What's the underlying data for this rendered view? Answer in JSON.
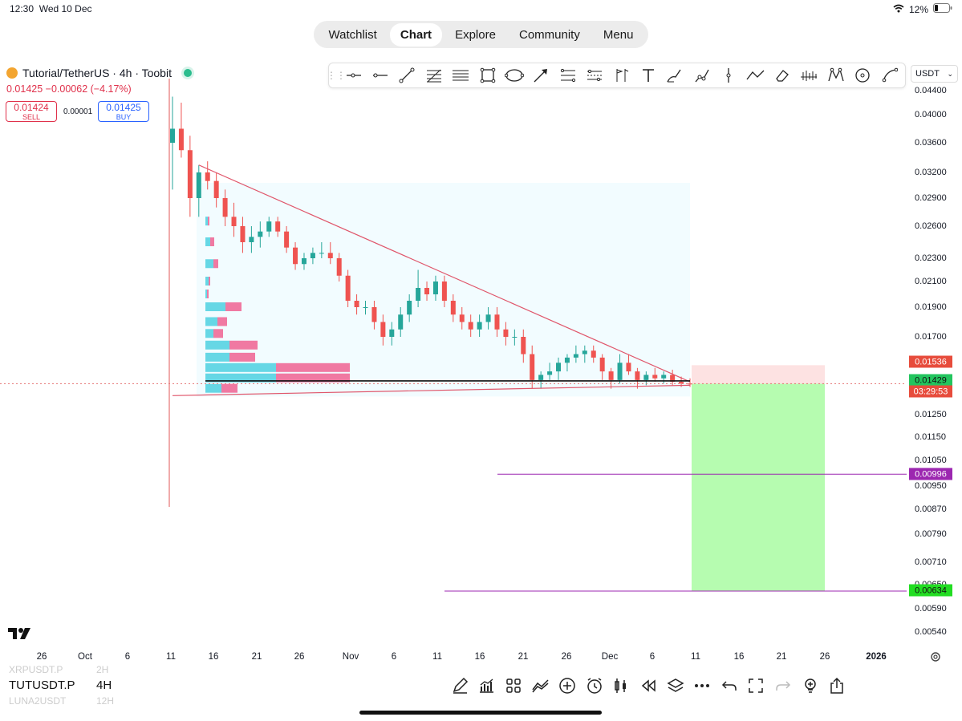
{
  "status": {
    "time": "12:30",
    "date": "Wed 10 Dec",
    "battery": "12%"
  },
  "nav_tabs": [
    {
      "label": "Watchlist",
      "active": false
    },
    {
      "label": "Chart",
      "active": true
    },
    {
      "label": "Explore",
      "active": false
    },
    {
      "label": "Community",
      "active": false
    },
    {
      "label": "Menu",
      "active": false
    }
  ],
  "symbol": {
    "title": "Tutorial/TetherUS · 4h · Toobit",
    "last": "0.01425",
    "change": "−0.00062 (−4.17%)"
  },
  "trade": {
    "sell_price": "0.01424",
    "sell_label": "SELL",
    "spread": "0.00001",
    "buy_price": "0.01425",
    "buy_label": "BUY"
  },
  "currency": "USDT",
  "price_axis": [
    "0.04400",
    "0.04000",
    "0.03600",
    "0.03200",
    "0.02900",
    "0.02600",
    "0.02300",
    "0.02100",
    "0.01900",
    "0.01700",
    "0.01250",
    "0.01150",
    "0.01050",
    "0.00950",
    "0.00870",
    "0.00790",
    "0.00710",
    "0.00650",
    "0.00590",
    "0.00540"
  ],
  "price_tags": {
    "target": "0.01536",
    "current": "0.01429",
    "countdown": "03:29:53",
    "level1": "0.00996",
    "level2": "0.00634"
  },
  "time_axis": [
    "26",
    "Oct",
    "6",
    "11",
    "16",
    "21",
    "26",
    "Nov",
    "6",
    "11",
    "16",
    "21",
    "26",
    "Dec",
    "6",
    "11",
    "16",
    "21",
    "26",
    "2026"
  ],
  "bottom": {
    "prev_symbol": "XRPUSDT.P",
    "prev_interval": "2H",
    "symbol": "TUTUSDT.P",
    "interval": "4H",
    "next_symbol": "LUNA2USDT",
    "next_interval": "12H"
  },
  "colors": {
    "up": "#26a69a",
    "down": "#ef5350",
    "target_tag": "#e74c3c",
    "current_tag": "#22c55e",
    "level_tag": "#9c27b0",
    "profit_zone": "#b6fcb0",
    "stop_zone": "#fde2e2"
  },
  "chart_data": {
    "type": "candlestick",
    "title": "",
    "xlabel": "",
    "ylabel": "",
    "x_range": [
      "Oct 10",
      "Dec 10"
    ],
    "ylim": [
      0.0054,
      0.044
    ],
    "candles": [
      [
        0.036,
        0.043,
        0.03,
        0.038
      ],
      [
        0.038,
        0.042,
        0.034,
        0.035
      ],
      [
        0.035,
        0.037,
        0.027,
        0.029
      ],
      [
        0.029,
        0.033,
        0.027,
        0.032
      ],
      [
        0.032,
        0.0335,
        0.03,
        0.031
      ],
      [
        0.031,
        0.032,
        0.028,
        0.029
      ],
      [
        0.029,
        0.03,
        0.026,
        0.027
      ],
      [
        0.027,
        0.0285,
        0.025,
        0.026
      ],
      [
        0.026,
        0.027,
        0.0235,
        0.0245
      ],
      [
        0.0245,
        0.026,
        0.0235,
        0.025
      ],
      [
        0.025,
        0.0265,
        0.024,
        0.0255
      ],
      [
        0.0255,
        0.027,
        0.025,
        0.0265
      ],
      [
        0.0265,
        0.027,
        0.025,
        0.0255
      ],
      [
        0.0255,
        0.026,
        0.0235,
        0.024
      ],
      [
        0.024,
        0.0245,
        0.022,
        0.0225
      ],
      [
        0.0225,
        0.0235,
        0.022,
        0.023
      ],
      [
        0.023,
        0.024,
        0.0225,
        0.0235
      ],
      [
        0.0235,
        0.0245,
        0.023,
        0.0235
      ],
      [
        0.0235,
        0.0245,
        0.0225,
        0.023
      ],
      [
        0.023,
        0.0235,
        0.021,
        0.0215
      ],
      [
        0.0215,
        0.022,
        0.019,
        0.0195
      ],
      [
        0.0195,
        0.02,
        0.0185,
        0.019
      ],
      [
        0.019,
        0.0195,
        0.0185,
        0.019
      ],
      [
        0.019,
        0.0195,
        0.0175,
        0.018
      ],
      [
        0.018,
        0.0185,
        0.0165,
        0.017
      ],
      [
        0.017,
        0.018,
        0.0165,
        0.0175
      ],
      [
        0.0175,
        0.019,
        0.017,
        0.0185
      ],
      [
        0.0185,
        0.02,
        0.018,
        0.0195
      ],
      [
        0.0195,
        0.022,
        0.019,
        0.0205
      ],
      [
        0.0205,
        0.021,
        0.0195,
        0.02
      ],
      [
        0.02,
        0.0215,
        0.0195,
        0.021
      ],
      [
        0.021,
        0.0215,
        0.019,
        0.0195
      ],
      [
        0.0195,
        0.02,
        0.018,
        0.0185
      ],
      [
        0.0185,
        0.019,
        0.0175,
        0.018
      ],
      [
        0.018,
        0.0185,
        0.017,
        0.0175
      ],
      [
        0.0175,
        0.0185,
        0.017,
        0.018
      ],
      [
        0.018,
        0.019,
        0.0175,
        0.0185
      ],
      [
        0.0185,
        0.019,
        0.017,
        0.0175
      ],
      [
        0.0175,
        0.018,
        0.0165,
        0.017
      ],
      [
        0.017,
        0.0175,
        0.0165,
        0.017
      ],
      [
        0.017,
        0.0175,
        0.0155,
        0.016
      ],
      [
        0.016,
        0.0165,
        0.014,
        0.0145
      ],
      [
        0.0145,
        0.015,
        0.014,
        0.0148
      ],
      [
        0.0148,
        0.0155,
        0.0145,
        0.015
      ],
      [
        0.015,
        0.0158,
        0.0145,
        0.0155
      ],
      [
        0.0155,
        0.016,
        0.015,
        0.0158
      ],
      [
        0.0158,
        0.0165,
        0.0155,
        0.016
      ],
      [
        0.016,
        0.0165,
        0.0155,
        0.0162
      ],
      [
        0.0162,
        0.0165,
        0.0155,
        0.0158
      ],
      [
        0.0158,
        0.016,
        0.0145,
        0.015
      ],
      [
        0.015,
        0.0152,
        0.014,
        0.0145
      ],
      [
        0.0145,
        0.016,
        0.0143,
        0.0155
      ],
      [
        0.0155,
        0.016,
        0.0148,
        0.015
      ],
      [
        0.015,
        0.0152,
        0.014,
        0.0145
      ],
      [
        0.0145,
        0.015,
        0.0142,
        0.0148
      ],
      [
        0.0148,
        0.0152,
        0.0144,
        0.0146
      ],
      [
        0.0146,
        0.015,
        0.0143,
        0.0148
      ],
      [
        0.0148,
        0.0151,
        0.0142,
        0.0144
      ],
      [
        0.0144,
        0.0147,
        0.0141,
        0.0143
      ],
      [
        0.0143,
        0.0146,
        0.0141,
        0.01425
      ]
    ],
    "volume_profile": [
      {
        "price": 0.0265,
        "buy": 3,
        "sell": 2
      },
      {
        "price": 0.0245,
        "buy": 6,
        "sell": 5
      },
      {
        "price": 0.0225,
        "buy": 10,
        "sell": 6
      },
      {
        "price": 0.021,
        "buy": 4,
        "sell": 2
      },
      {
        "price": 0.02,
        "buy": 2,
        "sell": 2
      },
      {
        "price": 0.019,
        "buy": 25,
        "sell": 20
      },
      {
        "price": 0.018,
        "buy": 15,
        "sell": 12
      },
      {
        "price": 0.0172,
        "buy": 10,
        "sell": 12
      },
      {
        "price": 0.0165,
        "buy": 30,
        "sell": 35
      },
      {
        "price": 0.0158,
        "buy": 30,
        "sell": 32
      },
      {
        "price": 0.0152,
        "buy": 88,
        "sell": 92
      },
      {
        "price": 0.0146,
        "buy": 88,
        "sell": 92
      },
      {
        "price": 0.014,
        "buy": 20,
        "sell": 20
      }
    ],
    "annotations": {
      "horizontal_line": 0.01445,
      "current_price": 0.01429,
      "short_position": {
        "entry": 0.01429,
        "stop": 0.01536,
        "target": 0.00634
      },
      "levels": [
        0.00996,
        0.00634
      ],
      "triangle_upper": [
        [
          3,
          0.033
        ],
        [
          59,
          0.0144
        ]
      ],
      "triangle_lower": [
        [
          0,
          0.0136
        ],
        [
          59,
          0.0142
        ]
      ]
    }
  }
}
